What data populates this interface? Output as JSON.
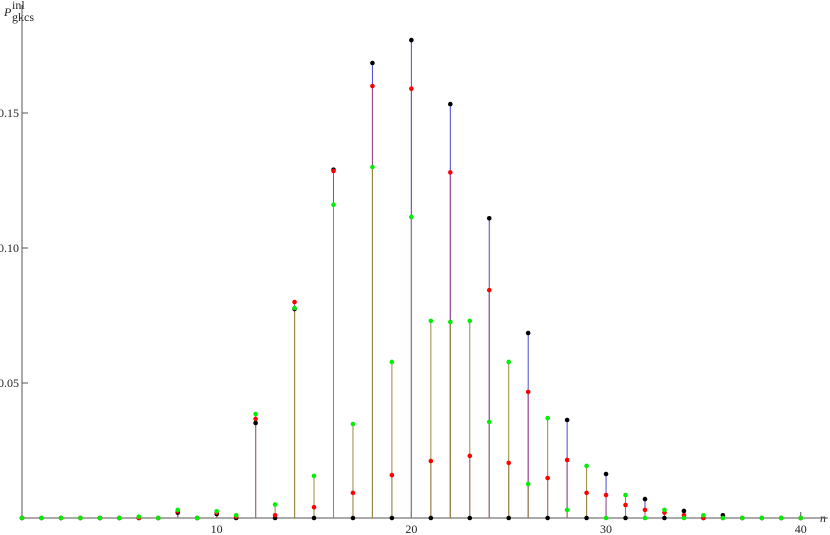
{
  "chart_data": {
    "type": "stem",
    "ylabel": {
      "base": "P",
      "sub": "gkcs",
      "sup": "inl"
    },
    "xlabel": "n",
    "x": [
      0,
      1,
      2,
      3,
      4,
      5,
      6,
      7,
      8,
      9,
      10,
      11,
      12,
      13,
      14,
      15,
      16,
      17,
      18,
      19,
      20,
      21,
      22,
      23,
      24,
      25,
      26,
      27,
      28,
      29,
      30,
      31,
      32,
      33,
      34,
      35,
      36,
      37,
      38,
      39,
      40
    ],
    "series": [
      {
        "color": "#000000",
        "stem_color": "#4a4ad0",
        "values": [
          0,
          0,
          0,
          0,
          0,
          0,
          0,
          0,
          0.002,
          0,
          0.0015,
          0,
          0.0352,
          0,
          0.0774,
          0,
          0.129,
          0,
          0.1685,
          0,
          0.177,
          0,
          0.1533,
          0,
          0.111,
          0,
          0.0685,
          0,
          0.0363,
          0,
          0.0163,
          0,
          0.007,
          0,
          0.0026,
          0,
          0.001,
          0,
          0,
          0,
          0
        ]
      },
      {
        "color": "#ff0000",
        "stem_color": "#a04890",
        "values": [
          0,
          0,
          0,
          0,
          0,
          0,
          0,
          0,
          0.0025,
          0,
          0.002,
          0.0005,
          0.0367,
          0.001,
          0.08,
          0.004,
          0.1285,
          0.0093,
          0.16,
          0.0159,
          0.159,
          0.0211,
          0.128,
          0.023,
          0.0844,
          0.0204,
          0.0467,
          0.0148,
          0.0215,
          0.0093,
          0.0085,
          0.0048,
          0.003,
          0.002,
          0.001,
          0,
          0,
          0,
          0,
          0,
          0
        ]
      },
      {
        "color": "#00ee00",
        "stem_color": "#9a8a40",
        "values": [
          0,
          0,
          0,
          0,
          0,
          0,
          0.0005,
          0,
          0.003,
          0,
          0.0025,
          0.001,
          0.0385,
          0.005,
          0.0778,
          0.0156,
          0.116,
          0.0348,
          0.13,
          0.0578,
          0.1115,
          0.073,
          0.0726,
          0.073,
          0.0356,
          0.0578,
          0.0126,
          0.037,
          0.003,
          0.0193,
          0,
          0.0085,
          0,
          0.003,
          0,
          0.001,
          0,
          0,
          0,
          0,
          0
        ]
      }
    ],
    "xlim": [
      0,
      41.4
    ],
    "ylim": [
      0,
      0.19
    ],
    "xticks": [
      10,
      20,
      30,
      40
    ],
    "yticks": [
      0.05,
      {
        "value": 0.1,
        "label": "0.10"
      },
      0.15
    ]
  }
}
